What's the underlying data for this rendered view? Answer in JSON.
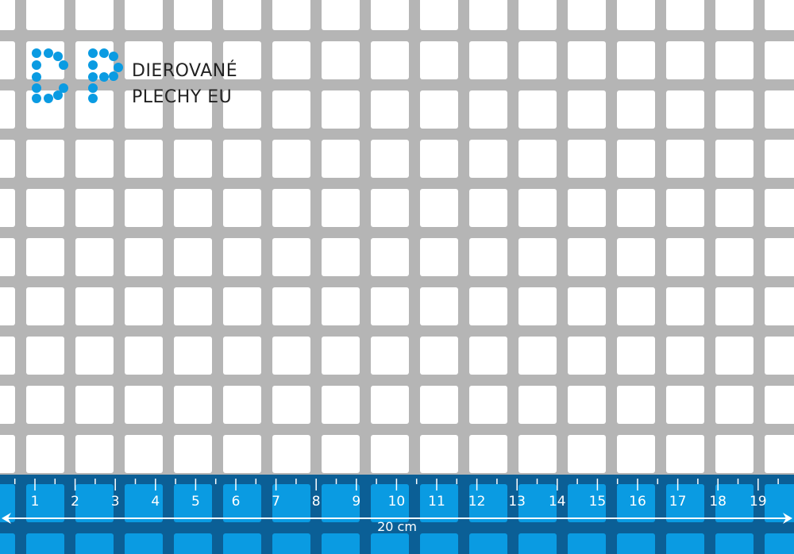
{
  "brand": {
    "line1": "DIEROVANÉ",
    "line2": "PLECHY EU",
    "logo_letters": "DP",
    "color": "#0a9be2"
  },
  "ruler": {
    "labels": [
      "1",
      "2",
      "3",
      "4",
      "5",
      "6",
      "7",
      "8",
      "9",
      "10",
      "11",
      "12",
      "13",
      "14",
      "15",
      "16",
      "17",
      "18",
      "19"
    ],
    "length_label": "20 cm",
    "colors": {
      "band": "#0b5f96",
      "hole": "#0a9be2",
      "marks": "#ffffff"
    }
  },
  "sheet": {
    "metal_color": "#b5b5b5",
    "hole_shape": "square"
  }
}
